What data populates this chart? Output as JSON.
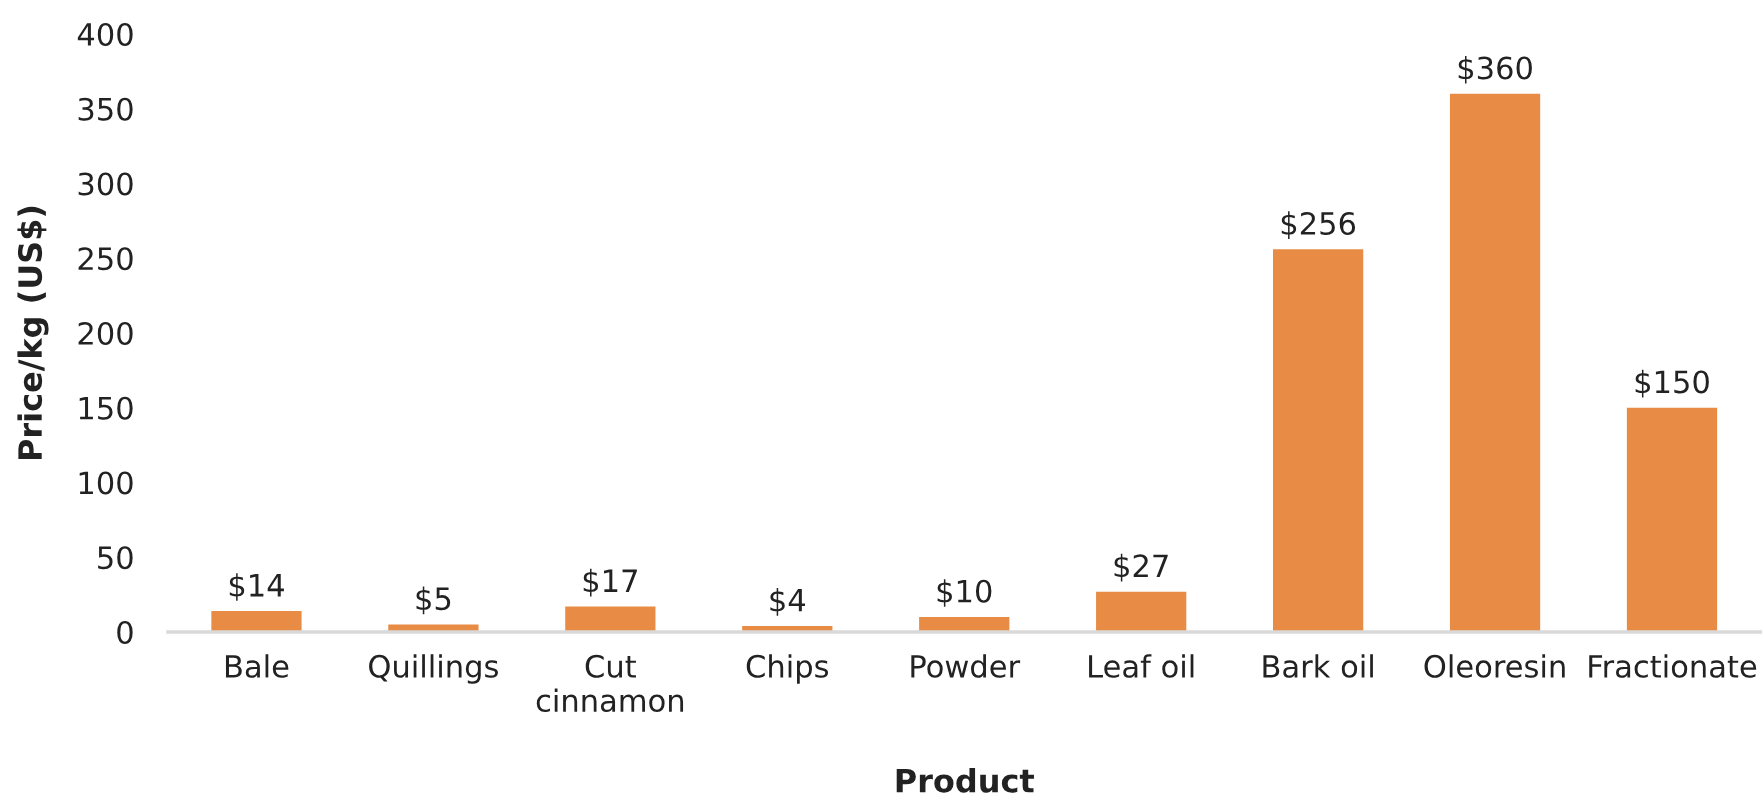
{
  "chart_data": {
    "type": "bar",
    "xlabel": "Product",
    "ylabel": "Price/kg (US$)",
    "categories": [
      "Bale",
      "Quillings",
      "Cut\ncinnamon",
      "Chips",
      "Powder",
      "Leaf oil",
      "Bark oil",
      "Oleoresin",
      "Fractionate"
    ],
    "values": [
      14,
      5,
      17,
      4,
      10,
      27,
      256,
      360,
      150
    ],
    "value_labels": [
      "$14",
      "$5",
      "$17",
      "$4",
      "$10",
      "$27",
      "$256",
      "$360",
      "$150"
    ],
    "color": "#e88b44",
    "ylim": [
      0,
      400
    ],
    "yticks": [
      0,
      50,
      100,
      150,
      200,
      250,
      300,
      350,
      400
    ],
    "grid": false
  }
}
